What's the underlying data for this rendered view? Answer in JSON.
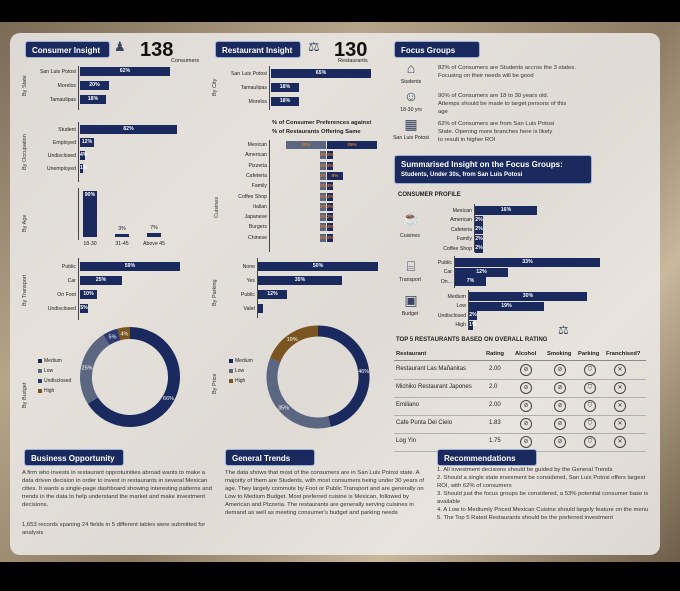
{
  "colors": {
    "navy": "#1b2a5e",
    "gray": "#5b6780",
    "brown": "#7a5520"
  },
  "consumer": {
    "title": "Consumer Insight",
    "count": "138",
    "count_label": "Consumers",
    "by_state_label": "By State",
    "states": [
      {
        "label": "San Luis Potosi",
        "value": "62%",
        "pct": 62
      },
      {
        "label": "Morelos",
        "value": "20%",
        "pct": 20
      },
      {
        "label": "Tamaulipas",
        "value": "18%",
        "pct": 18
      }
    ],
    "by_occupation_label": "By Occupation",
    "occupations": [
      {
        "label": "Student",
        "value": "82%",
        "pct": 82
      },
      {
        "label": "Employed",
        "value": "12%",
        "pct": 12
      },
      {
        "label": "Undisclosed",
        "value": "4%",
        "pct": 4
      },
      {
        "label": "Unemployed",
        "value": "1%",
        "pct": 1
      }
    ],
    "by_age_label": "By Age",
    "ages": [
      {
        "label": "18-30",
        "value": "90%",
        "pct": 90
      },
      {
        "label": "31-45",
        "value": "3%",
        "pct": 3
      },
      {
        "label": "Above 45",
        "value": "7%",
        "pct": 7
      }
    ],
    "by_transport_label": "By Transport",
    "transport": [
      {
        "label": "Public",
        "value": "59%",
        "pct": 59
      },
      {
        "label": "Car",
        "value": "25%",
        "pct": 25
      },
      {
        "label": "On Foot",
        "value": "10%",
        "pct": 10
      },
      {
        "label": "Undisclosed",
        "value": "5%",
        "pct": 5
      }
    ],
    "by_budget_label": "By Budget",
    "budget_legend": [
      "Medium",
      "Low",
      "Undisclosed",
      "High"
    ],
    "budget_slices": [
      {
        "label": "Medium",
        "value": "66%",
        "pct": 66,
        "color": "#1b2a5e"
      },
      {
        "label": "Low",
        "value": "25%",
        "pct": 25,
        "color": "#5b6780"
      },
      {
        "label": "Undisclosed",
        "value": "5%",
        "pct": 5,
        "color": "#2d3a70"
      },
      {
        "label": "High",
        "value": "4%",
        "pct": 4,
        "color": "#7a5520"
      }
    ]
  },
  "restaurant": {
    "title": "Restaurant Insight",
    "count": "130",
    "count_label": "Restaurants",
    "by_city_label": "By City",
    "cities": [
      {
        "label": "San Luis Potosi",
        "value": "65%",
        "pct": 65
      },
      {
        "label": "Tamaulipas",
        "value": "18%",
        "pct": 18
      },
      {
        "label": "Morelos",
        "value": "18%",
        "pct": 18
      }
    ],
    "cuisine_header_a": "% of Consumer Preferences",
    "cuisine_header_b": "against",
    "cuisine_header_c": "% of Restaurants Offering Same",
    "cuisines_label": "Cuisines",
    "cuisines": [
      {
        "label": "Mexican",
        "a": "20%",
        "b": "25%",
        "ap": 20,
        "bp": 25
      },
      {
        "label": "American",
        "a": "3%",
        "b": "2%",
        "ap": 3,
        "bp": 2
      },
      {
        "label": "Pizzeria",
        "a": "3%",
        "b": "3%",
        "ap": 3,
        "bp": 3
      },
      {
        "label": "Cafeteria",
        "a": "3%",
        "b": "8%",
        "ap": 3,
        "bp": 8
      },
      {
        "label": "Family",
        "a": "2%",
        "b": "3%",
        "ap": 2,
        "bp": 3
      },
      {
        "label": "Coffee Shop",
        "a": "2%",
        "b": "1%",
        "ap": 2,
        "bp": 1
      },
      {
        "label": "Italian",
        "a": "2%",
        "b": "2%",
        "ap": 2,
        "bp": 2
      },
      {
        "label": "Japanese",
        "a": "2%",
        "b": "2%",
        "ap": 2,
        "bp": 2
      },
      {
        "label": "Burgers",
        "a": "2%",
        "b": "3%",
        "ap": 2,
        "bp": 3
      },
      {
        "label": "Chinese",
        "a": "2%",
        "b": "2%",
        "ap": 2,
        "bp": 2
      }
    ],
    "by_parking_label": "By Parking",
    "parking": [
      {
        "label": "None",
        "value": "50%",
        "pct": 50
      },
      {
        "label": "Yes",
        "value": "35%",
        "pct": 35
      },
      {
        "label": "Public",
        "value": "12%",
        "pct": 12
      },
      {
        "label": "Valet",
        "value": "",
        "pct": 2
      }
    ],
    "by_price_label": "By Price",
    "price_legend": [
      "Medium",
      "Low",
      "High"
    ],
    "price_slices": [
      {
        "label": "Medium",
        "value": "46%",
        "pct": 46,
        "color": "#1b2a5e"
      },
      {
        "label": "Low",
        "value": "35%",
        "pct": 35,
        "color": "#5b6780"
      },
      {
        "label": "High",
        "value": "19%",
        "pct": 19,
        "color": "#7a5520"
      }
    ]
  },
  "focus": {
    "title": "Focus Groups",
    "items": [
      {
        "icon_label": "Students",
        "icon": "graduation-cap",
        "line1": "82% of Consumers are Students accros the 3 states.",
        "line2": "Focusing on their needs will be good"
      },
      {
        "icon_label": "18-30 yrs",
        "icon": "people",
        "line1": "90% of Consumers are 18 to 30 years old.",
        "line2": "Attemps should be made to target persons of this",
        "line3": "age"
      },
      {
        "icon_label": "San Luis Potosi",
        "icon": "city",
        "line1": "62% of Consumers are from San Luis Potosi",
        "line2": "State. Opening more branches here is likely",
        "line3": "to result in higher ROI"
      }
    ]
  },
  "summary": {
    "title": "Summarised Insight on the Focus Groups:",
    "subtitle": "Students, Under 30s, from San Luis Potosi",
    "profile_label": "CONSUMER PROFILE",
    "cuisines_label": "Cuisines",
    "cuisines": [
      {
        "label": "Mexican",
        "value": "16%",
        "pct": 16
      },
      {
        "label": "American",
        "value": "2%",
        "pct": 2
      },
      {
        "label": "Cafeteria",
        "value": "2%",
        "pct": 2
      },
      {
        "label": "Family",
        "value": "2%",
        "pct": 2
      },
      {
        "label": "Coffee Shop",
        "value": "2%",
        "pct": 2
      }
    ],
    "transport_label": "Transport",
    "transport": [
      {
        "label": "Public",
        "value": "33%",
        "pct": 33
      },
      {
        "label": "Car",
        "value": "12%",
        "pct": 12
      },
      {
        "label": "On...",
        "value": "7%",
        "pct": 7
      }
    ],
    "budget_label": "Budget",
    "budget": [
      {
        "label": "Medium",
        "value": "30%",
        "pct": 30
      },
      {
        "label": "Low",
        "value": "19%",
        "pct": 19
      },
      {
        "label": "Undisclosed",
        "value": "2%",
        "pct": 2
      },
      {
        "label": "High",
        "value": "1%",
        "pct": 1
      }
    ]
  },
  "top5": {
    "title": "TOP 5 RESTAURANTS BASED ON OVERALL RATING",
    "headers": [
      "Restaurant",
      "Rating",
      "Alcohol",
      "Smoking",
      "Parking",
      "Franchised?"
    ],
    "rows": [
      {
        "name": "Restaurant Las Mañanitas",
        "rating": "2.00"
      },
      {
        "name": "Michiko Restaurant Japones",
        "rating": "2.0"
      },
      {
        "name": "Emiliano",
        "rating": "2.00"
      },
      {
        "name": "Cafe Punta Del Cielo",
        "rating": "1.83"
      },
      {
        "name": "Log Yin",
        "rating": "1.75"
      }
    ]
  },
  "opportunity": {
    "title": "Business Opportunity",
    "p1": "A firm who invests in restaurant opprotuinities abroad wants to make a data driven decision in order to invest in restaurants in several Mexican cities. It wants a single-page dashboard showing interesting patterns and trends in the data to help understand the market and make investment decisions.",
    "p2": "1,653 records spaning 24 fields in 5 different tables were submitted for analysis"
  },
  "trends": {
    "title": "General Trends",
    "text": "The data shows that most of the consumers are in San Luis Potosi state. A majority of them are Students, with most consumers being under 30 years of age. They largely commute by Foot or Public Transport and are generally on Low to Medium Budget. Most preferred cuisine is Mexican, followed by American and Pizzeria. The restaurants are generally serving cuisines in demand as well as meeting consumer's budget and parking needs"
  },
  "recs": {
    "title": "Recommendations",
    "items": [
      "1. All investment decisions should be guided by the General Trends",
      "2. Should a single state invesment be considered, San Luis Potosi offers largest ROI, with 62% of consumers",
      "3. Should just the focus groups be considered, a 53% potential consumer base is available",
      "4. A Low to Mediumly Priced Mexican Cuisine should largely feature on the menu",
      "5. The Top 5 Rated Restaurants should be the preferred investment"
    ]
  }
}
